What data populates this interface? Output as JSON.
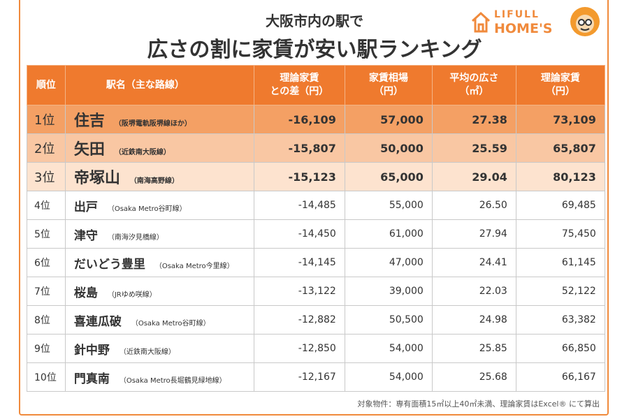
{
  "header": {
    "subtitle": "大阪市内の駅で",
    "title": "広さの割に家賃が安い駅ランキング"
  },
  "logo": {
    "top": "LIFULL",
    "bottom": "HOME'S"
  },
  "table": {
    "columns": [
      [
        "順位"
      ],
      [
        "駅名（主な路線）"
      ],
      [
        "理論家賃",
        "との差（円）"
      ],
      [
        "家賃相場",
        "（円）"
      ],
      [
        "平均の広さ",
        "（㎡）"
      ],
      [
        "理論家賃",
        "（円）"
      ]
    ],
    "rows": [
      [
        "1位",
        "住吉",
        "（阪堺電軌阪堺線ほか）",
        "-16,109",
        "57,000",
        "27.38",
        "73,109"
      ],
      [
        "2位",
        "矢田",
        "（近鉄南大阪線）",
        "-15,807",
        "50,000",
        "25.59",
        "65,807"
      ],
      [
        "3位",
        "帝塚山",
        "（南海高野線）",
        "-15,123",
        "65,000",
        "29.04",
        "80,123"
      ],
      [
        "4位",
        "出戸",
        "（Osaka Metro谷町線）",
        "-14,485",
        "55,000",
        "26.50",
        "69,485"
      ],
      [
        "5位",
        "津守",
        "（南海汐見橋線）",
        "-14,450",
        "61,000",
        "27.94",
        "75,450"
      ],
      [
        "6位",
        "だいどう豊里",
        "（Osaka Metro今里線）",
        "-14,145",
        "47,000",
        "24.41",
        "61,145"
      ],
      [
        "7位",
        "桜島",
        "（JRゆめ咲線）",
        "-13,122",
        "39,000",
        "22.03",
        "52,122"
      ],
      [
        "8位",
        "喜連瓜破",
        "（Osaka Metro谷町線）",
        "-12,882",
        "50,500",
        "24.98",
        "63,382"
      ],
      [
        "9位",
        "針中野",
        "（近鉄南大阪線）",
        "-12,850",
        "54,000",
        "25.85",
        "66,850"
      ],
      [
        "10位",
        "門真南",
        "（Osaka Metro長堀鶴見緑地線）",
        "-12,167",
        "54,000",
        "25.68",
        "66,167"
      ]
    ]
  },
  "footnote": "対象物件：専有面積15㎡以上40㎡未満、理論家賃はExcel® にて算出"
}
